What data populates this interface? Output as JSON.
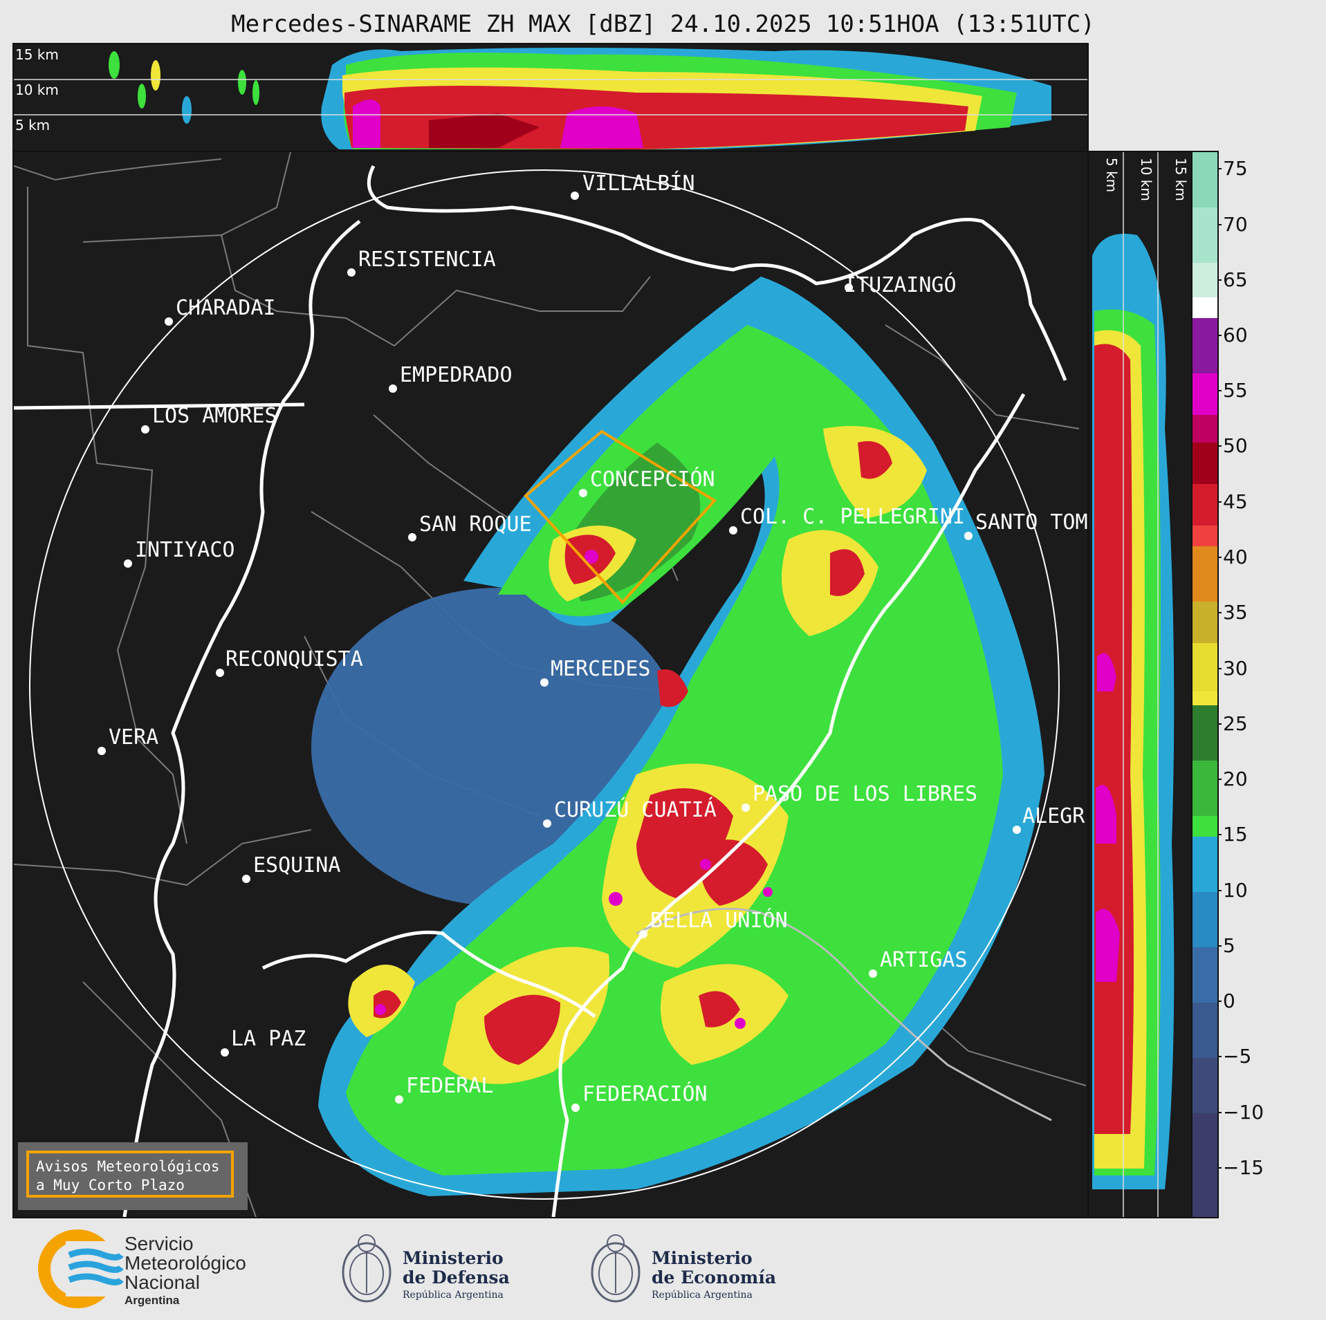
{
  "title": "Mercedes-SINARAME ZH MAX [dBZ] 24.10.2025 10:51HOA (13:51UTC)",
  "top_panel": {
    "altitude_labels": [
      "15 km",
      "10 km",
      "5 km"
    ]
  },
  "side_panel": {
    "altitude_labels": [
      "5 km",
      "10 km",
      "15 km"
    ]
  },
  "map": {
    "cities": [
      {
        "name": "VILLALBÍN"
      },
      {
        "name": "RESISTENCIA"
      },
      {
        "name": "CHARADAI"
      },
      {
        "name": "ITUZAINGÓ"
      },
      {
        "name": "EMPEDRADO"
      },
      {
        "name": "LOS AMORES"
      },
      {
        "name": "CONCEPCIÓN"
      },
      {
        "name": "SAN ROQUE"
      },
      {
        "name": "COL. C. PELLEGRINI"
      },
      {
        "name": "SANTO TOM"
      },
      {
        "name": "INTIYACO"
      },
      {
        "name": "RECONQUISTA"
      },
      {
        "name": "MERCEDES"
      },
      {
        "name": "VERA"
      },
      {
        "name": "CURUZÚ CUATIÁ"
      },
      {
        "name": "PASO DE LOS LIBRES"
      },
      {
        "name": "ALEGR"
      },
      {
        "name": "ESQUINA"
      },
      {
        "name": "BELLA UNIÓN"
      },
      {
        "name": "ARTIGAS"
      },
      {
        "name": "LA PAZ"
      },
      {
        "name": "FEDERAL"
      },
      {
        "name": "FEDERACIÓN"
      }
    ],
    "radar_site": "MERCEDES",
    "warning_polygon_color": "#f5a300"
  },
  "colorbar": {
    "unit": "dBZ",
    "ticks": [
      "75",
      "70",
      "65",
      "60",
      "55",
      "50",
      "45",
      "40",
      "35",
      "30",
      "25",
      "20",
      "15",
      "10",
      "5",
      "0",
      "−5",
      "−10",
      "−15"
    ],
    "colors": {
      "purple_low": "#3d3d6b",
      "blue": "#3a6da8",
      "cyan": "#29a8d8",
      "green": "#3de03d",
      "dark_green": "#2e7d2e",
      "yellow": "#f0e63a",
      "orange": "#e08a1e",
      "red": "#d41c2c",
      "dark_red": "#a0001a",
      "magenta": "#e000c8",
      "purple": "#8a1aa0",
      "white": "#ffffff",
      "mint": "#8ad8b8"
    }
  },
  "warning_box": {
    "line1": "Avisos Meteorológicos",
    "line2": "a Muy Corto Plazo"
  },
  "logos": {
    "smn": {
      "line1": "Servicio",
      "line2": "Meteorológico",
      "line3": "Nacional",
      "line4": "Argentina"
    },
    "defensa": {
      "line1": "Ministerio",
      "line2": "de Defensa",
      "line3": "República Argentina"
    },
    "economia": {
      "line1": "Ministerio",
      "line2": "de Economía",
      "line3": "República Argentina"
    }
  }
}
